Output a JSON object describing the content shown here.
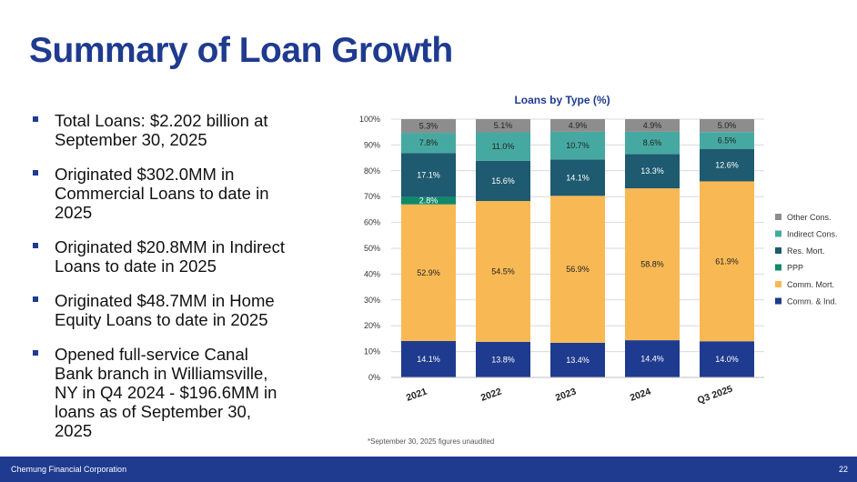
{
  "title": "Summary of Loan Growth",
  "bullets": [
    "Total Loans: $2.202 billion at September 30, 2025",
    "Originated $302.0MM in Commercial Loans to date in 2025",
    "Originated $20.8MM in Indirect Loans to date in 2025",
    "Originated $48.7MM in Home Equity Loans to date in 2025",
    "Opened full-service Canal Bank branch in Williamsville, NY in Q4 2024 -  $196.6MM in loans as of September 30, 2025"
  ],
  "footnote": "*September 30, 2025 figures unaudited",
  "footer": {
    "company": "Chemung Financial Corporation",
    "page_number": "22"
  },
  "colors": {
    "brand": "#1f3b8f",
    "Comm. & Ind.": "#1f3b8f",
    "Comm. Mort.": "#f8b955",
    "PPP": "#0e8a6a",
    "Res. Mort.": "#1e5a70",
    "Indirect Cons.": "#46a9a1",
    "Other Cons.": "#8d8d8d"
  },
  "chart_data": {
    "type": "bar",
    "stacked": true,
    "title": "Loans by Type (%)",
    "categories": [
      "2021",
      "2022",
      "2023",
      "2024",
      "Q3 2025"
    ],
    "ylim": [
      0,
      100
    ],
    "yticks": [
      "0%",
      "10%",
      "20%",
      "30%",
      "40%",
      "50%",
      "60%",
      "70%",
      "80%",
      "90%",
      "100%"
    ],
    "legend_position": "right",
    "series": [
      {
        "name": "Comm. & Ind.",
        "values": [
          14.1,
          13.8,
          13.4,
          14.4,
          14.0
        ],
        "labels": [
          "14.1%",
          "13.8%",
          "13.4%",
          "14.4%",
          "14.0%"
        ]
      },
      {
        "name": "Comm. Mort.",
        "values": [
          52.9,
          54.5,
          56.9,
          58.8,
          61.9
        ],
        "labels": [
          "52.9%",
          "54.5%",
          "56.9%",
          "58.8%",
          "61.9%"
        ]
      },
      {
        "name": "PPP",
        "values": [
          2.8,
          0,
          0,
          0,
          0
        ],
        "labels": [
          "2.8%",
          "",
          "",
          "",
          ""
        ]
      },
      {
        "name": "Res. Mort.",
        "values": [
          17.1,
          15.6,
          14.1,
          13.3,
          12.6
        ],
        "labels": [
          "17.1%",
          "15.6%",
          "14.1%",
          "13.3%",
          "12.6%"
        ]
      },
      {
        "name": "Indirect Cons.",
        "values": [
          7.8,
          11.0,
          10.7,
          8.6,
          6.5
        ],
        "labels": [
          "7.8%",
          "11.0%",
          "10.7%",
          "8.6%",
          "6.5%"
        ]
      },
      {
        "name": "Other Cons.",
        "values": [
          5.3,
          5.1,
          4.9,
          4.9,
          5.0
        ],
        "labels": [
          "5.3%",
          "5.1%",
          "4.9%",
          "4.9%",
          "5.0%"
        ]
      }
    ],
    "legend_order": [
      "Other Cons.",
      "Indirect Cons.",
      "Res. Mort.",
      "PPP",
      "Comm. Mort.",
      "Comm. & Ind."
    ]
  }
}
